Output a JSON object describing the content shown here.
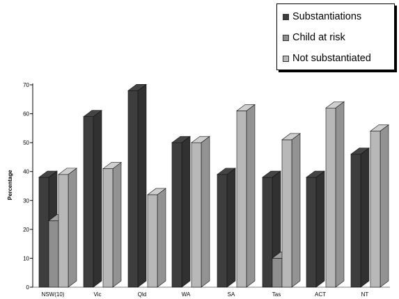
{
  "chart_data": {
    "type": "bar",
    "categories": [
      "NSW(10)",
      "Vic",
      "Qld",
      "WA",
      "SA",
      "Tas",
      "ACT",
      "NT"
    ],
    "series": [
      {
        "name": "Substantiations",
        "color": "#3d3d3d",
        "values": [
          38,
          59,
          68,
          50,
          39,
          38,
          38,
          46
        ]
      },
      {
        "name": "Child at risk",
        "color": "#8f8f8f",
        "values": [
          23,
          null,
          null,
          null,
          null,
          10,
          null,
          null
        ]
      },
      {
        "name": "Not substantiated",
        "color": "#b8b8b8",
        "values": [
          39,
          41,
          32,
          50,
          61,
          51,
          62,
          54
        ]
      }
    ],
    "ylabel": "Percentage",
    "xlabel": "",
    "ylim": [
      0,
      70
    ],
    "yticks": [
      0,
      10,
      20,
      30,
      40,
      50,
      60,
      70
    ],
    "style": "3d-clustered-bar",
    "legend_position": "top-right",
    "grid": false
  }
}
